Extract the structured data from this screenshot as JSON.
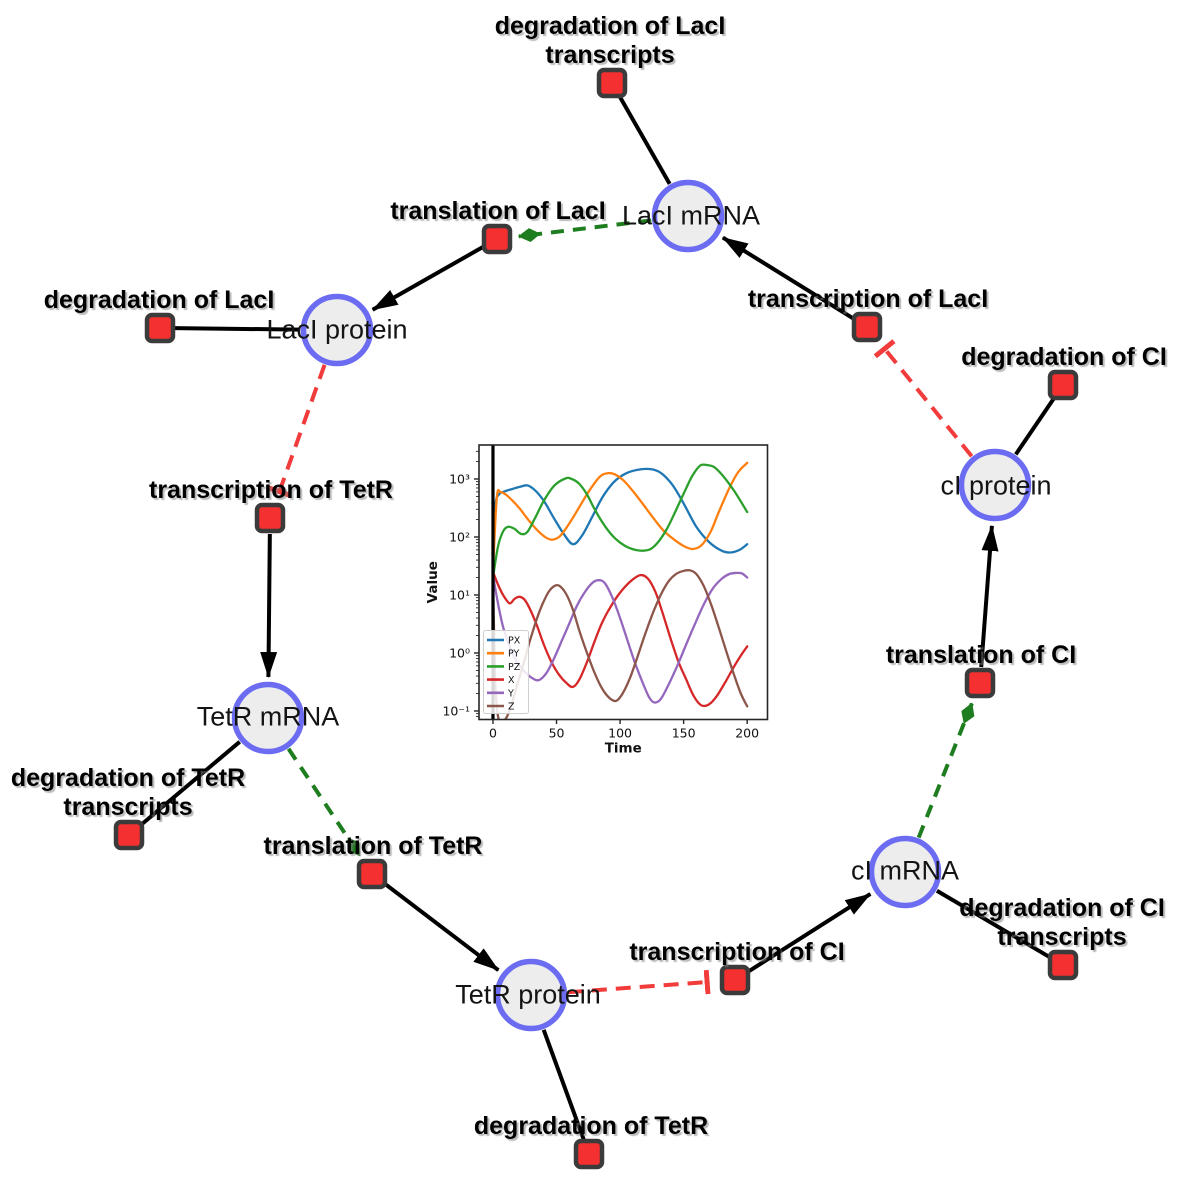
{
  "diagram": {
    "species": {
      "laci_mrna": {
        "label": "LacI mRNA"
      },
      "laci_protein": {
        "label": "LacI protein"
      },
      "tetr_mrna": {
        "label": "TetR mRNA"
      },
      "tetr_protein": {
        "label": "TetR protein"
      },
      "ci_mrna": {
        "label": "cI mRNA"
      },
      "ci_protein": {
        "label": "cI protein"
      }
    },
    "reactions": {
      "deg_laci_tx": {
        "lines": [
          "degradation of LacI",
          "transcripts"
        ]
      },
      "transl_laci": {
        "lines": [
          "translation of LacI"
        ]
      },
      "deg_laci": {
        "lines": [
          "degradation of LacI"
        ]
      },
      "txn_laci": {
        "lines": [
          "transcription of LacI"
        ]
      },
      "deg_ci": {
        "lines": [
          "degradation of CI"
        ]
      },
      "txn_tetr": {
        "lines": [
          "transcription of TetR"
        ]
      },
      "transl_ci": {
        "lines": [
          "translation of CI"
        ]
      },
      "deg_tetr_tx": {
        "lines": [
          "degradation of TetR",
          "transcripts"
        ]
      },
      "transl_tetr": {
        "lines": [
          "translation of TetR"
        ]
      },
      "txn_ci": {
        "lines": [
          "transcription of CI"
        ]
      },
      "deg_ci_tx": {
        "lines": [
          "degradation of CI",
          "transcripts"
        ]
      },
      "deg_tetr": {
        "lines": [
          "degradation of TetR"
        ]
      }
    },
    "edges": [
      {
        "from": "n-laci-mrna",
        "to": "n-deg-laci-tx",
        "type": "consumption"
      },
      {
        "from": "n-laci-mrna",
        "to": "n-transl-laci",
        "type": "catalysis"
      },
      {
        "from": "n-transl-laci",
        "to": "n-laci-protein",
        "type": "production"
      },
      {
        "from": "n-txn-laci",
        "to": "n-laci-mrna",
        "type": "production"
      },
      {
        "from": "n-laci-protein",
        "to": "n-deg-laci",
        "type": "consumption"
      },
      {
        "from": "n-laci-protein",
        "to": "n-txn-tetr",
        "type": "inhibition"
      },
      {
        "from": "n-txn-tetr",
        "to": "n-tetr-mrna",
        "type": "production"
      },
      {
        "from": "n-tetr-mrna",
        "to": "n-deg-tetr-tx",
        "type": "consumption"
      },
      {
        "from": "n-tetr-mrna",
        "to": "n-transl-tetr",
        "type": "catalysis"
      },
      {
        "from": "n-transl-tetr",
        "to": "n-tetr-protein",
        "type": "production"
      },
      {
        "from": "n-tetr-protein",
        "to": "n-deg-tetr",
        "type": "consumption"
      },
      {
        "from": "n-tetr-protein",
        "to": "n-txn-ci",
        "type": "inhibition"
      },
      {
        "from": "n-txn-ci",
        "to": "n-ci-mrna",
        "type": "production"
      },
      {
        "from": "n-ci-mrna",
        "to": "n-deg-ci-tx",
        "type": "consumption"
      },
      {
        "from": "n-ci-mrna",
        "to": "n-transl-ci",
        "type": "catalysis"
      },
      {
        "from": "n-transl-ci",
        "to": "n-ci-protein",
        "type": "production"
      },
      {
        "from": "n-ci-protein",
        "to": "n-deg-ci",
        "type": "consumption"
      },
      {
        "from": "n-ci-protein",
        "to": "n-txn-laci",
        "type": "inhibition"
      }
    ],
    "colors": {
      "species_fill": "#ededed",
      "species_border": "#6c6cf2",
      "reaction_fill": "#f53030",
      "reaction_border": "#3b3b3b",
      "production_edge": "#000000",
      "catalysis_edge": "#1e7d1e",
      "inhibition_edge": "#f23b3b"
    }
  },
  "chart_data": {
    "type": "line",
    "title": "",
    "xlabel": "Time",
    "ylabel": "Value",
    "x_scale": "linear",
    "y_scale": "log",
    "xlim": [
      -11,
      216
    ],
    "ylim": [
      0.0713,
      3855
    ],
    "x_ticks": [
      0,
      50,
      100,
      150,
      200
    ],
    "y_ticks": [
      0.1,
      1,
      10,
      100,
      1000
    ],
    "y_tick_labels": [
      "10⁻¹",
      "10⁰",
      "10¹",
      "10²",
      "10³"
    ],
    "grid": false,
    "legend_position": "lower left",
    "event_vline_x": 0,
    "series": [
      {
        "name": "PX",
        "color": "#1f77b4",
        "points": [
          [
            0,
            90
          ],
          [
            2,
            380
          ],
          [
            5,
            550
          ],
          [
            10,
            620
          ],
          [
            15,
            670
          ],
          [
            21,
            730
          ],
          [
            27,
            775
          ],
          [
            33,
            640
          ],
          [
            40,
            420
          ],
          [
            48,
            210
          ],
          [
            56,
            110
          ],
          [
            63,
            75
          ],
          [
            70,
            105
          ],
          [
            78,
            220
          ],
          [
            86,
            480
          ],
          [
            95,
            880
          ],
          [
            104,
            1230
          ],
          [
            113,
            1430
          ],
          [
            124,
            1480
          ],
          [
            132,
            1280
          ],
          [
            141,
            800
          ],
          [
            150,
            380
          ],
          [
            160,
            150
          ],
          [
            170,
            82
          ],
          [
            180,
            58
          ],
          [
            187,
            54
          ],
          [
            194,
            60
          ],
          [
            200,
            75
          ]
        ]
      },
      {
        "name": "PY",
        "color": "#ff7f0e",
        "points": [
          [
            0,
            25
          ],
          [
            3,
            480
          ],
          [
            6,
            590
          ],
          [
            10,
            540
          ],
          [
            15,
            430
          ],
          [
            21,
            310
          ],
          [
            28,
            195
          ],
          [
            35,
            130
          ],
          [
            42,
            97
          ],
          [
            47,
            90
          ],
          [
            53,
            105
          ],
          [
            60,
            170
          ],
          [
            68,
            330
          ],
          [
            76,
            640
          ],
          [
            84,
            1090
          ],
          [
            90,
            1260
          ],
          [
            96,
            1200
          ],
          [
            103,
            930
          ],
          [
            110,
            620
          ],
          [
            118,
            370
          ],
          [
            126,
            215
          ],
          [
            134,
            130
          ],
          [
            142,
            92
          ],
          [
            150,
            70
          ],
          [
            157,
            62
          ],
          [
            164,
            72
          ],
          [
            171,
            120
          ],
          [
            178,
            280
          ],
          [
            186,
            700
          ],
          [
            193,
            1320
          ],
          [
            200,
            1900
          ]
        ]
      },
      {
        "name": "PZ",
        "color": "#2ca02c",
        "points": [
          [
            0,
            20
          ],
          [
            4,
            70
          ],
          [
            8,
            125
          ],
          [
            12,
            150
          ],
          [
            17,
            138
          ],
          [
            22,
            113
          ],
          [
            27,
            122
          ],
          [
            33,
            210
          ],
          [
            40,
            420
          ],
          [
            48,
            760
          ],
          [
            57,
            1020
          ],
          [
            62,
            1000
          ],
          [
            68,
            820
          ],
          [
            74,
            540
          ],
          [
            80,
            300
          ],
          [
            88,
            155
          ],
          [
            96,
            95
          ],
          [
            104,
            70
          ],
          [
            112,
            60
          ],
          [
            118,
            58
          ],
          [
            124,
            62
          ],
          [
            130,
            82
          ],
          [
            137,
            140
          ],
          [
            144,
            290
          ],
          [
            151,
            620
          ],
          [
            157,
            1150
          ],
          [
            163,
            1700
          ],
          [
            168,
            1740
          ],
          [
            174,
            1600
          ],
          [
            181,
            1130
          ],
          [
            190,
            610
          ],
          [
            200,
            270
          ]
        ]
      },
      {
        "name": "X",
        "color": "#d62728",
        "points": [
          [
            0,
            25
          ],
          [
            4,
            15
          ],
          [
            8,
            10
          ],
          [
            13,
            7.2
          ],
          [
            17,
            8.6
          ],
          [
            21,
            9.3
          ],
          [
            25,
            8.2
          ],
          [
            30,
            5.2
          ],
          [
            35,
            2.8
          ],
          [
            40,
            1.4
          ],
          [
            46,
            0.7
          ],
          [
            52,
            0.42
          ],
          [
            58,
            0.3
          ],
          [
            63,
            0.26
          ],
          [
            68,
            0.35
          ],
          [
            74,
            0.7
          ],
          [
            80,
            1.6
          ],
          [
            86,
            3.4
          ],
          [
            93,
            6.5
          ],
          [
            100,
            11
          ],
          [
            108,
            17
          ],
          [
            116,
            22
          ],
          [
            122,
            19
          ],
          [
            128,
            11
          ],
          [
            134,
            4.5
          ],
          [
            140,
            1.7
          ],
          [
            146,
            0.7
          ],
          [
            152,
            0.35
          ],
          [
            158,
            0.18
          ],
          [
            164,
            0.125
          ],
          [
            170,
            0.13
          ],
          [
            176,
            0.18
          ],
          [
            183,
            0.32
          ],
          [
            190,
            0.6
          ],
          [
            195,
            0.9
          ],
          [
            200,
            1.3
          ]
        ]
      },
      {
        "name": "Y",
        "color": "#9467bd",
        "points": [
          [
            0,
            22
          ],
          [
            4,
            7
          ],
          [
            8,
            2.8
          ],
          [
            13,
            1.3
          ],
          [
            18,
            0.75
          ],
          [
            24,
            0.5
          ],
          [
            30,
            0.38
          ],
          [
            36,
            0.34
          ],
          [
            42,
            0.45
          ],
          [
            48,
            0.8
          ],
          [
            54,
            1.6
          ],
          [
            60,
            3.2
          ],
          [
            66,
            6.5
          ],
          [
            72,
            11
          ],
          [
            78,
            16
          ],
          [
            83,
            18
          ],
          [
            88,
            16
          ],
          [
            94,
            9
          ],
          [
            100,
            4
          ],
          [
            106,
            1.6
          ],
          [
            112,
            0.65
          ],
          [
            118,
            0.3
          ],
          [
            123,
            0.17
          ],
          [
            127,
            0.14
          ],
          [
            132,
            0.16
          ],
          [
            138,
            0.28
          ],
          [
            145,
            0.6
          ],
          [
            152,
            1.4
          ],
          [
            159,
            3.2
          ],
          [
            166,
            7
          ],
          [
            173,
            13
          ],
          [
            180,
            19
          ],
          [
            186,
            23
          ],
          [
            192,
            24
          ],
          [
            196,
            23.5
          ],
          [
            200,
            20
          ]
        ]
      },
      {
        "name": "Z",
        "color": "#8c564b",
        "points": [
          [
            0,
            20
          ],
          [
            1,
            1.5
          ],
          [
            2,
            0.25
          ],
          [
            4,
            0.08
          ],
          [
            7,
            0.065
          ],
          [
            11,
            0.08
          ],
          [
            15,
            0.14
          ],
          [
            19,
            0.28
          ],
          [
            24,
            0.65
          ],
          [
            29,
            1.6
          ],
          [
            34,
            3.6
          ],
          [
            39,
            7
          ],
          [
            44,
            11.5
          ],
          [
            49,
            14.5
          ],
          [
            53,
            14
          ],
          [
            58,
            10
          ],
          [
            63,
            5.5
          ],
          [
            68,
            2.4
          ],
          [
            74,
            1
          ],
          [
            80,
            0.45
          ],
          [
            86,
            0.24
          ],
          [
            92,
            0.165
          ],
          [
            97,
            0.15
          ],
          [
            102,
            0.2
          ],
          [
            108,
            0.38
          ],
          [
            114,
            0.9
          ],
          [
            120,
            2.2
          ],
          [
            126,
            5
          ],
          [
            132,
            10
          ],
          [
            138,
            17
          ],
          [
            144,
            23
          ],
          [
            150,
            26
          ],
          [
            155,
            26.5
          ],
          [
            160,
            23
          ],
          [
            166,
            14
          ],
          [
            172,
            6.5
          ],
          [
            178,
            2.6
          ],
          [
            184,
            1
          ],
          [
            190,
            0.4
          ],
          [
            195,
            0.2
          ],
          [
            200,
            0.12
          ]
        ]
      }
    ]
  }
}
